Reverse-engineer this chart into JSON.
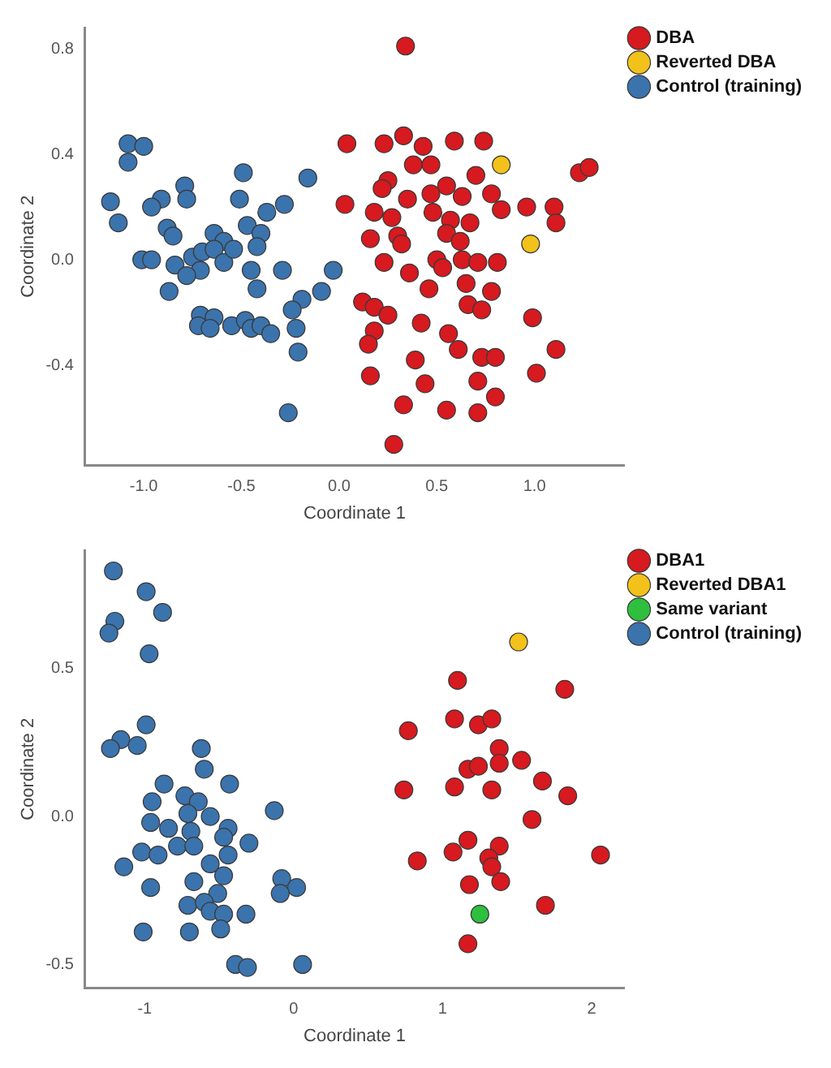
{
  "chart_data": [
    {
      "type": "scatter",
      "xlabel": "Coordinate 1",
      "ylabel": "Coordinate 2",
      "xlim": [
        -1.3,
        1.46
      ],
      "ylim": [
        -0.78,
        0.88
      ],
      "xticks": [
        {
          "value": -1,
          "label": "-1.0"
        },
        -0.5,
        {
          "value": 0,
          "label": "0.0"
        },
        0.5,
        {
          "value": 1,
          "label": "1.0"
        }
      ],
      "yticks": [
        -0.4,
        {
          "value": 0,
          "label": "0.0"
        },
        0.4,
        0.8
      ],
      "legend": "right",
      "marker": "circle",
      "grid": false,
      "series": [
        {
          "name": "DBA",
          "color": "#d61a1f",
          "x": [
            0.34,
            0.04,
            0.23,
            0.33,
            0.43,
            0.59,
            0.74,
            0.38,
            0.47,
            0.7,
            1.23,
            1.28,
            0.25,
            0.22,
            0.55,
            0.47,
            0.63,
            0.78,
            0.35,
            0.03,
            0.83,
            0.96,
            1.1,
            1.11,
            0.18,
            0.27,
            0.48,
            0.57,
            0.67,
            0.16,
            0.3,
            0.32,
            0.55,
            0.62,
            0.23,
            0.5,
            0.53,
            0.63,
            0.71,
            0.81,
            0.36,
            0.65,
            0.46,
            0.78,
            0.12,
            0.18,
            0.25,
            0.66,
            0.73,
            0.99,
            0.42,
            0.18,
            0.15,
            0.56,
            0.61,
            1.11,
            0.39,
            0.73,
            0.8,
            0.16,
            1.01,
            0.44,
            0.71,
            0.8,
            0.33,
            0.55,
            0.71,
            0.28
          ],
          "values": [
            0.81,
            0.44,
            0.44,
            0.47,
            0.43,
            0.45,
            0.45,
            0.36,
            0.36,
            0.32,
            0.33,
            0.35,
            0.3,
            0.27,
            0.28,
            0.25,
            0.24,
            0.25,
            0.23,
            0.21,
            0.19,
            0.2,
            0.2,
            0.14,
            0.18,
            0.16,
            0.18,
            0.15,
            0.14,
            0.08,
            0.09,
            0.06,
            0.1,
            0.07,
            -0.01,
            0.0,
            -0.03,
            0.0,
            -0.01,
            -0.01,
            -0.05,
            -0.09,
            -0.11,
            -0.12,
            -0.16,
            -0.18,
            -0.21,
            -0.17,
            -0.19,
            -0.22,
            -0.24,
            -0.27,
            -0.32,
            -0.28,
            -0.34,
            -0.34,
            -0.38,
            -0.37,
            -0.37,
            -0.44,
            -0.43,
            -0.47,
            -0.46,
            -0.52,
            -0.55,
            -0.57,
            -0.58,
            -0.7
          ]
        },
        {
          "name": "Reverted DBA",
          "color": "#f2c21b",
          "x": [
            0.83,
            0.98
          ],
          "values": [
            0.36,
            0.06
          ]
        },
        {
          "name": "Control (training)",
          "color": "#3b73ad",
          "x": [
            -1.08,
            -1.0,
            -1.08,
            -1.17,
            -1.13,
            -0.79,
            -0.78,
            -0.91,
            -0.96,
            -0.49,
            -0.16,
            -0.51,
            -0.28,
            -0.37,
            -0.47,
            -0.4,
            -0.88,
            -0.85,
            -0.64,
            -0.59,
            -1.01,
            -0.96,
            -0.84,
            -0.75,
            -0.7,
            -0.64,
            -0.71,
            -0.78,
            -0.59,
            -0.54,
            -0.42,
            -0.45,
            -0.29,
            -0.03,
            -0.42,
            -0.87,
            -0.09,
            -0.19,
            -0.24,
            -0.71,
            -0.64,
            -0.72,
            -0.66,
            -0.55,
            -0.48,
            -0.45,
            -0.4,
            -0.35,
            -0.22,
            -0.21,
            -0.26
          ],
          "values": [
            0.44,
            0.43,
            0.37,
            0.22,
            0.14,
            0.28,
            0.23,
            0.23,
            0.2,
            0.33,
            0.31,
            0.23,
            0.21,
            0.18,
            0.13,
            0.1,
            0.12,
            0.09,
            0.1,
            0.07,
            0.0,
            0.0,
            -0.02,
            0.01,
            0.03,
            0.04,
            -0.04,
            -0.06,
            -0.01,
            0.04,
            0.05,
            -0.04,
            -0.04,
            -0.04,
            -0.11,
            -0.12,
            -0.12,
            -0.15,
            -0.19,
            -0.21,
            -0.22,
            -0.25,
            -0.26,
            -0.25,
            -0.23,
            -0.26,
            -0.25,
            -0.28,
            -0.26,
            -0.35,
            -0.58
          ]
        }
      ]
    },
    {
      "type": "scatter",
      "xlabel": "Coordinate 1",
      "ylabel": "Coordinate 2",
      "xlim": [
        -1.4,
        2.22
      ],
      "ylim": [
        -0.58,
        0.9
      ],
      "xticks": [
        -1,
        0,
        1,
        2
      ],
      "yticks": [
        -0.5,
        {
          "value": 0,
          "label": "0.0"
        },
        0.5
      ],
      "legend": "right",
      "marker": "circle",
      "grid": false,
      "series": [
        {
          "name": "DBA1",
          "color": "#d61a1f",
          "x": [
            1.1,
            1.82,
            0.77,
            1.08,
            1.24,
            1.33,
            1.38,
            1.53,
            1.17,
            1.24,
            1.38,
            0.74,
            1.08,
            1.33,
            1.67,
            1.84,
            1.6,
            1.17,
            1.07,
            1.38,
            1.31,
            1.33,
            0.83,
            2.06,
            1.18,
            1.39,
            1.69,
            1.17
          ],
          "values": [
            0.46,
            0.43,
            0.29,
            0.33,
            0.31,
            0.33,
            0.23,
            0.19,
            0.16,
            0.17,
            0.18,
            0.09,
            0.1,
            0.09,
            0.12,
            0.07,
            -0.01,
            -0.08,
            -0.12,
            -0.1,
            -0.14,
            -0.17,
            -0.15,
            -0.13,
            -0.23,
            -0.22,
            -0.3,
            -0.43
          ]
        },
        {
          "name": "Reverted DBA1",
          "color": "#f2c21b",
          "x": [
            1.51
          ],
          "values": [
            0.59
          ]
        },
        {
          "name": "Same variant",
          "color": "#2fbf3f",
          "x": [
            1.25
          ],
          "values": [
            -0.33
          ]
        },
        {
          "name": "Control (training)",
          "color": "#3b73ad",
          "x": [
            -1.21,
            -0.99,
            -0.88,
            -1.2,
            -1.24,
            -0.97,
            -0.99,
            -1.16,
            -1.23,
            -1.05,
            -0.62,
            -0.6,
            -0.43,
            -0.87,
            -0.95,
            -0.73,
            -0.64,
            -0.71,
            -0.56,
            -0.13,
            -0.96,
            -0.84,
            -0.69,
            -0.44,
            -0.47,
            -0.3,
            -0.78,
            -0.67,
            -1.02,
            -0.91,
            -0.44,
            -1.14,
            -0.56,
            -0.49,
            -0.47,
            -0.08,
            0.02,
            -0.09,
            -0.96,
            -0.67,
            -0.51,
            -0.71,
            -0.6,
            -0.56,
            -0.47,
            -0.32,
            -0.49,
            -1.01,
            -0.7,
            -0.39,
            -0.31,
            0.06
          ],
          "values": [
            0.83,
            0.76,
            0.69,
            0.66,
            0.62,
            0.55,
            0.31,
            0.26,
            0.23,
            0.24,
            0.23,
            0.16,
            0.11,
            0.11,
            0.05,
            0.07,
            0.05,
            0.01,
            0.0,
            0.02,
            -0.02,
            -0.04,
            -0.05,
            -0.04,
            -0.07,
            -0.09,
            -0.1,
            -0.1,
            -0.12,
            -0.13,
            -0.13,
            -0.17,
            -0.16,
            null,
            -0.2,
            -0.21,
            -0.24,
            -0.26,
            -0.24,
            -0.22,
            -0.26,
            -0.3,
            -0.29,
            -0.32,
            -0.33,
            -0.33,
            -0.38,
            -0.39,
            -0.39,
            -0.5,
            -0.51,
            -0.5
          ]
        }
      ]
    }
  ]
}
